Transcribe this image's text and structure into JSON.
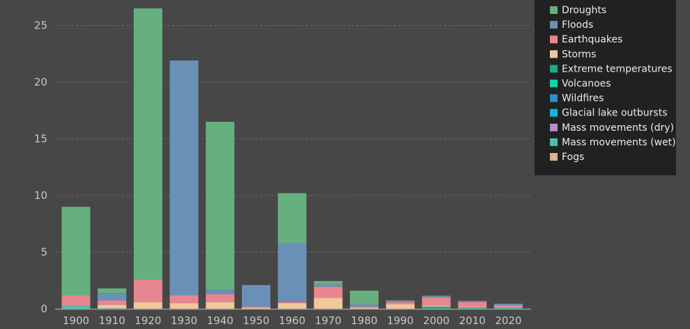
{
  "chart_data": {
    "type": "bar",
    "stacked": true,
    "categories": [
      "1900",
      "1910",
      "1920",
      "1930",
      "1940",
      "1950",
      "1960",
      "1970",
      "1980",
      "1990",
      "2000",
      "2010",
      "2020"
    ],
    "series": [
      {
        "name": "Fogs",
        "color": "#d9b48e",
        "values": [
          0.0,
          0.0,
          0.0,
          0.0,
          0.0,
          0.0,
          0.0,
          0.0,
          0.0,
          0.0,
          0.0,
          0.0,
          0.0
        ]
      },
      {
        "name": "Mass movements (wet)",
        "color": "#4dbfb0",
        "values": [
          0.3,
          0.05,
          0.0,
          0.0,
          0.0,
          0.0,
          0.0,
          0.0,
          0.0,
          0.0,
          0.0,
          0.0,
          0.0
        ]
      },
      {
        "name": "Mass movements (dry)",
        "color": "#b88cc8",
        "values": [
          0.0,
          0.0,
          0.0,
          0.0,
          0.0,
          0.0,
          0.0,
          0.0,
          0.0,
          0.0,
          0.0,
          0.0,
          0.0
        ]
      },
      {
        "name": "Glacial lake outbursts",
        "color": "#12b7d6",
        "values": [
          0.0,
          0.0,
          0.0,
          0.0,
          0.0,
          0.0,
          0.0,
          0.0,
          0.0,
          0.0,
          0.0,
          0.0,
          0.0
        ]
      },
      {
        "name": "Wildfires",
        "color": "#2d8fcf",
        "values": [
          0.0,
          0.0,
          0.0,
          0.0,
          0.0,
          0.0,
          0.0,
          0.0,
          0.0,
          0.0,
          0.0,
          0.0,
          0.0
        ]
      },
      {
        "name": "Volcanoes",
        "color": "#12d4a8",
        "values": [
          0.0,
          0.0,
          0.0,
          0.0,
          0.0,
          0.0,
          0.0,
          0.0,
          0.0,
          0.0,
          0.0,
          0.0,
          0.0
        ]
      },
      {
        "name": "Extreme temperatures",
        "color": "#1fa88a",
        "values": [
          0.0,
          0.0,
          0.0,
          0.0,
          0.0,
          0.0,
          0.0,
          0.0,
          0.0,
          0.0,
          0.2,
          0.1,
          0.1
        ]
      },
      {
        "name": "Storms",
        "color": "#f2c79a",
        "values": [
          0.0,
          0.3,
          0.6,
          0.5,
          0.6,
          0.1,
          0.5,
          0.95,
          0.1,
          0.4,
          0.1,
          0.05,
          0.05
        ]
      },
      {
        "name": "Earthquakes",
        "color": "#e8868f",
        "values": [
          0.9,
          0.4,
          2.0,
          0.7,
          0.7,
          0.1,
          0.1,
          1.0,
          0.1,
          0.2,
          0.7,
          0.45,
          0.15
        ]
      },
      {
        "name": "Floods",
        "color": "#6b90b8",
        "values": [
          0.0,
          0.65,
          0.0,
          20.7,
          0.4,
          1.9,
          5.2,
          0.2,
          0.2,
          0.15,
          0.1,
          0.1,
          0.15
        ]
      },
      {
        "name": "Droughts",
        "color": "#66b07f",
        "values": [
          7.8,
          0.4,
          23.9,
          0.0,
          14.8,
          0.0,
          4.4,
          0.3,
          1.2,
          0.0,
          0.05,
          0.0,
          0.0
        ]
      }
    ],
    "title": "",
    "xlabel": "",
    "ylabel": "",
    "ylim": [
      0,
      27
    ],
    "yticks": [
      0,
      5,
      10,
      15,
      20,
      25
    ],
    "grid": true,
    "legend_position": "top-right",
    "legend_order": [
      "Droughts",
      "Floods",
      "Earthquakes",
      "Storms",
      "Extreme temperatures",
      "Volcanoes",
      "Wildfires",
      "Glacial lake outbursts",
      "Mass movements (dry)",
      "Mass movements (wet)",
      "Fogs"
    ]
  },
  "colors": {
    "background": "#474747",
    "legend_background": "#212121",
    "grid": "#6a6a6a",
    "axis": "#9a9a9a",
    "tick_text": "#c8c8c8",
    "legend_text": "#ececec"
  }
}
